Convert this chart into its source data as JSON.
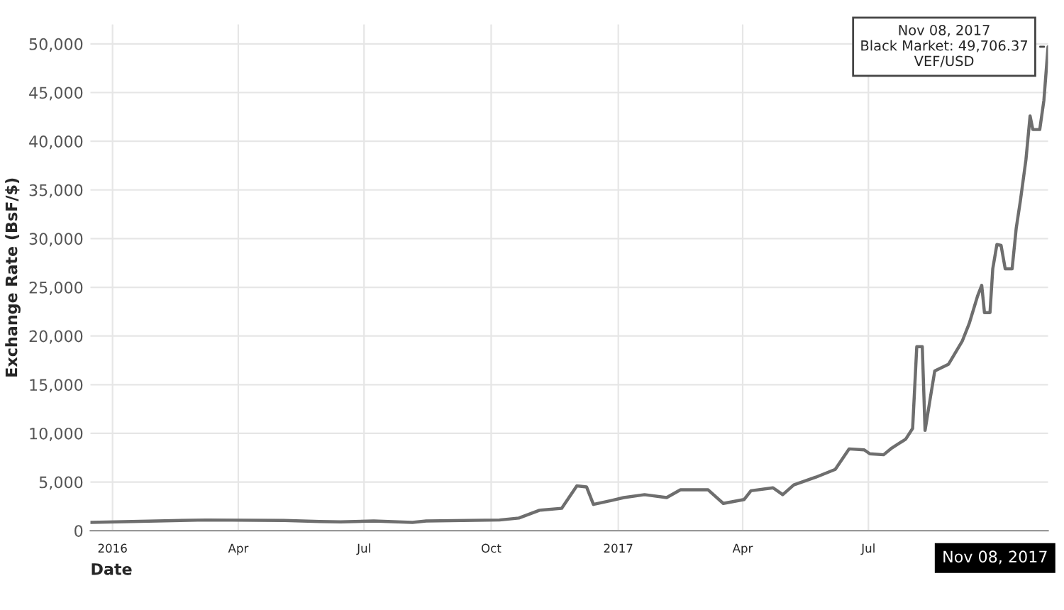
{
  "chart_data": {
    "type": "line",
    "xlabel": "Date",
    "ylabel": "Exchange Rate (BsF/$)",
    "x": [
      "2015-12-16",
      "2016-02-02",
      "2016-03-09",
      "2016-05-04",
      "2016-05-30",
      "2016-06-14",
      "2016-07-08",
      "2016-08-05",
      "2016-08-15",
      "2016-10-07",
      "2016-10-21",
      "2016-11-05",
      "2016-11-21",
      "2016-12-02",
      "2016-12-09",
      "2016-12-14",
      "2016-12-27",
      "2017-01-05",
      "2017-01-20",
      "2017-02-05",
      "2017-02-15",
      "2017-03-07",
      "2017-03-18",
      "2017-04-02",
      "2017-04-07",
      "2017-04-23",
      "2017-04-30",
      "2017-05-08",
      "2017-05-24",
      "2017-06-07",
      "2017-06-17",
      "2017-06-28",
      "2017-07-02",
      "2017-07-12",
      "2017-07-18",
      "2017-07-28",
      "2017-08-02",
      "2017-08-05",
      "2017-08-09",
      "2017-08-11",
      "2017-08-15",
      "2017-08-18",
      "2017-08-28",
      "2017-09-07",
      "2017-09-12",
      "2017-09-18",
      "2017-09-21",
      "2017-09-23",
      "2017-09-27",
      "2017-09-29",
      "2017-10-02",
      "2017-10-05",
      "2017-10-08",
      "2017-10-13",
      "2017-10-16",
      "2017-10-19",
      "2017-10-23",
      "2017-10-26",
      "2017-10-28",
      "2017-11-02",
      "2017-11-05",
      "2017-11-08"
    ],
    "series": [
      {
        "color": "#6e6e6e",
        "values": [
          850,
          1000,
          1100,
          1050,
          950,
          900,
          1000,
          850,
          1000,
          1100,
          1300,
          2100,
          2300,
          4600,
          4500,
          2700,
          3100,
          3400,
          3700,
          3400,
          4200,
          4200,
          2800,
          3200,
          4100,
          4400,
          3700,
          4700,
          5500,
          6300,
          8400,
          8300,
          7900,
          7800,
          8500,
          9400,
          10500,
          18900,
          18900,
          10300,
          13800,
          16400,
          17100,
          19500,
          21300,
          24100,
          25200,
          22400,
          22400,
          26900,
          29400,
          29300,
          26900,
          26900,
          31100,
          33900,
          38100,
          42600,
          41200,
          41200,
          44200,
          49706.37
        ]
      }
    ],
    "xlim": [
      "2015-12-16",
      "2017-11-08"
    ],
    "xticks": [
      {
        "value": "2016-01-01",
        "label": "2016"
      },
      {
        "value": "2016-04-01",
        "label": "Apr"
      },
      {
        "value": "2016-07-01",
        "label": "Jul"
      },
      {
        "value": "2016-10-01",
        "label": "Oct"
      },
      {
        "value": "2017-01-01",
        "label": "2017"
      },
      {
        "value": "2017-04-01",
        "label": "Apr"
      },
      {
        "value": "2017-07-01",
        "label": "Jul"
      }
    ],
    "ylim": [
      0,
      52000
    ],
    "yticks": [
      {
        "value": 0,
        "label": "0"
      },
      {
        "value": 5000,
        "label": "5,000"
      },
      {
        "value": 10000,
        "label": "10,000"
      },
      {
        "value": 15000,
        "label": "15,000"
      },
      {
        "value": 20000,
        "label": "20,000"
      },
      {
        "value": 25000,
        "label": "25,000"
      },
      {
        "value": 30000,
        "label": "30,000"
      },
      {
        "value": 35000,
        "label": "35,000"
      },
      {
        "value": 40000,
        "label": "40,000"
      },
      {
        "value": 45000,
        "label": "45,000"
      },
      {
        "value": 50000,
        "label": "50,000"
      }
    ],
    "grid": true,
    "legend": false,
    "marker": "none",
    "line_style": "solid",
    "annotations": [
      {
        "text": "Nov 08, 2017\nBlack Market: 49,706.37\nVEF/USD",
        "x": "2017-11-08",
        "y": 49706.37
      },
      "Nov 08, 2017"
    ]
  }
}
